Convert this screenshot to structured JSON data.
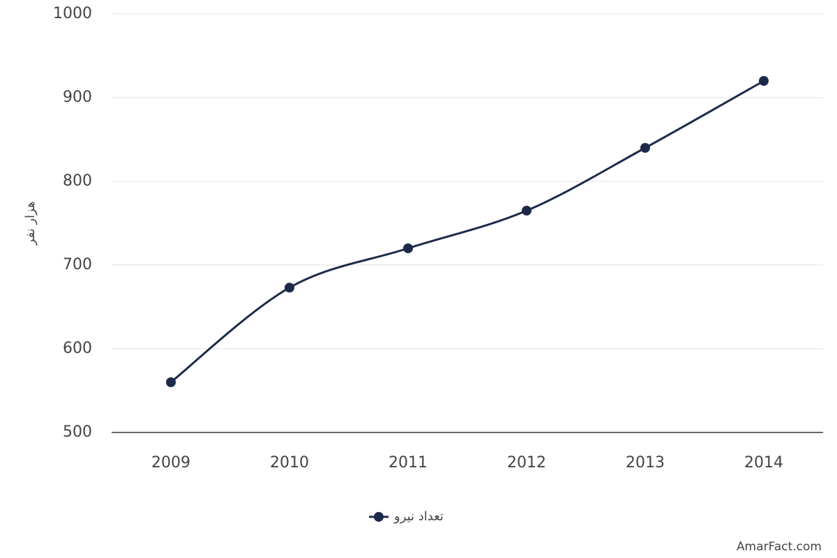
{
  "chart_data": {
    "type": "line",
    "y_label": "هزار نفر",
    "categories": [
      "2009",
      "2010",
      "2011",
      "2012",
      "2013",
      "2014"
    ],
    "series": [
      {
        "name": "تعداد نیرو",
        "color": "#1c2a4a",
        "values": [
          560,
          673,
          720,
          765,
          840,
          920
        ]
      }
    ],
    "ylim": [
      500,
      1000
    ],
    "yticks": [
      500,
      600,
      700,
      800,
      900,
      1000
    ],
    "grid": true,
    "legend": "bottom"
  },
  "credit": "AmarFact.com"
}
